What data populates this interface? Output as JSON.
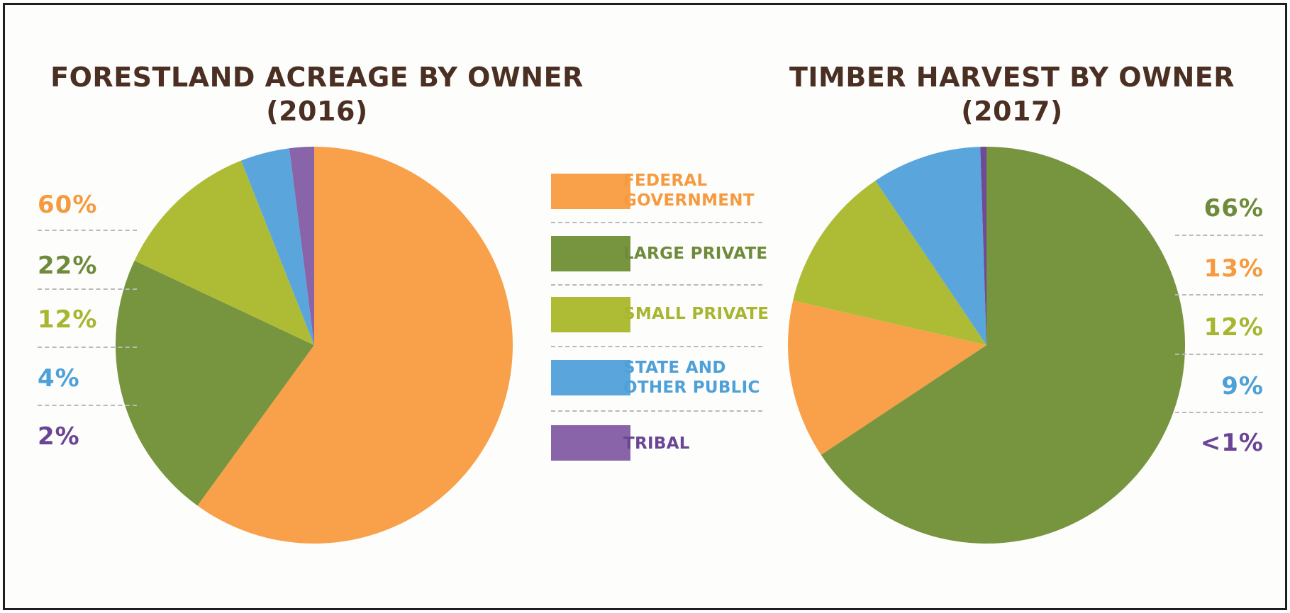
{
  "chart_data": [
    {
      "type": "pie",
      "title_line1": "FORESTLAND ACREAGE BY OWNER",
      "title_line2": "(2016)",
      "slices": [
        {
          "label": "FEDERAL GOVERNMENT",
          "value": 60,
          "label_text": "60%",
          "color": "#f9a04a"
        },
        {
          "label": "LARGE PRIVATE",
          "value": 22,
          "label_text": "22%",
          "color": "#77943f"
        },
        {
          "label": "SMALL PRIVATE",
          "value": 12,
          "label_text": "12%",
          "color": "#aebc35"
        },
        {
          "label": "STATE AND OTHER PUBLIC",
          "value": 4,
          "label_text": "4%",
          "color": "#5aa6dc"
        },
        {
          "label": "TRIBAL",
          "value": 2,
          "label_text": "2%",
          "color": "#8a64a8"
        }
      ]
    },
    {
      "type": "pie",
      "title_line1": "TIMBER HARVEST BY OWNER",
      "title_line2": "(2017)",
      "slices": [
        {
          "label": "LARGE PRIVATE",
          "value": 66,
          "label_text": "66%",
          "color": "#77943f"
        },
        {
          "label": "FEDERAL GOVERNMENT",
          "value": 13,
          "label_text": "13%",
          "color": "#f9a04a"
        },
        {
          "label": "SMALL PRIVATE",
          "value": 12,
          "label_text": "12%",
          "color": "#aebc35"
        },
        {
          "label": "STATE AND OTHER PUBLIC",
          "value": 9,
          "label_text": "9%",
          "color": "#5aa6dc"
        },
        {
          "label": "TRIBAL",
          "value": 0.5,
          "label_text": "<1%",
          "color": "#6f4a96"
        }
      ]
    }
  ],
  "legend": [
    {
      "line1": "FEDERAL",
      "line2": "GOVERNMENT",
      "color": "#f9a04a"
    },
    {
      "line1": "LARGE PRIVATE",
      "line2": "",
      "color": "#77943f"
    },
    {
      "line1": "SMALL PRIVATE",
      "line2": "",
      "color": "#aebc35"
    },
    {
      "line1": "STATE AND",
      "line2": "OTHER PUBLIC",
      "color": "#5aa6dc"
    },
    {
      "line1": "TRIBAL",
      "line2": "",
      "color": "#8a64a8"
    }
  ],
  "text_colors": {
    "federal": "#f59a3f",
    "large_private": "#6e8a3a",
    "small_private": "#a7b52f",
    "state_public": "#4ea0d8",
    "tribal": "#6a4595"
  }
}
